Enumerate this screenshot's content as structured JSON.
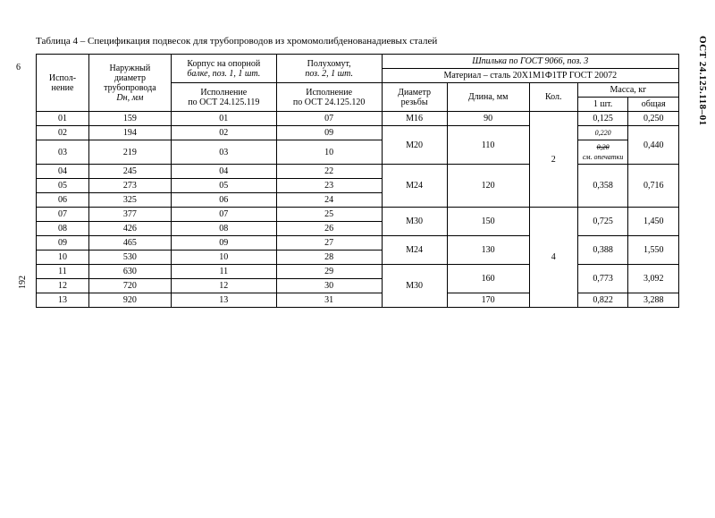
{
  "doc_code": "ОСТ 24.125.118–01",
  "side_num_top": "6",
  "side_num_192": "192",
  "caption": "Таблица 4 – Спецификация подвесок для трубопроводов из хромомолибденованадиевых сталей",
  "header": {
    "col1": "Испол-\nнение",
    "col2_a": "Наружный",
    "col2_b": "диаметр",
    "col2_c": "трубопровода",
    "col2_d": "Dн, мм",
    "col3_a": "Корпус на опорной",
    "col3_b": "балке, поз. 1, 1 шт.",
    "col3_sub": "Исполнение\nпо ОСТ 24.125.119",
    "col4_a": "Полухомут,",
    "col4_b": "поз. 2, 1 шт.",
    "col4_sub": "Исполнение\nпо ОСТ 24.125.120",
    "stud_top": "Шпилька по ГОСТ 9066, поз. 3",
    "stud_mat": "Материал – сталь 20Х1М1Ф1ТР  ГОСТ 20072",
    "thread": "Диаметр\nрезьбы",
    "length": "Длина, мм",
    "qty": "Кол.",
    "mass": "Масса, кг",
    "mass_1": "1 шт.",
    "mass_tot": "общая"
  },
  "rows": [
    {
      "n": "01",
      "d": "159",
      "c3": "01",
      "c4": "07",
      "thread": "М16",
      "len": "90",
      "qty": "",
      "m1": "0,125",
      "mt": "0,250"
    },
    {
      "n": "02",
      "d": "194",
      "c3": "02",
      "c4": "09",
      "thread": "",
      "len": "",
      "qty": "",
      "m1": "0,220",
      "mt": ""
    },
    {
      "n": "03",
      "d": "219",
      "c3": "03",
      "c4": "10",
      "thread": "",
      "len": "",
      "qty": "",
      "m1": "",
      "mt": ""
    },
    {
      "n": "04",
      "d": "245",
      "c3": "04",
      "c4": "22",
      "thread": "",
      "len": "",
      "qty": "2",
      "m1": "",
      "mt": ""
    },
    {
      "n": "05",
      "d": "273",
      "c3": "05",
      "c4": "23",
      "thread": "",
      "len": "",
      "qty": "",
      "m1": "",
      "mt": ""
    },
    {
      "n": "06",
      "d": "325",
      "c3": "06",
      "c4": "24",
      "thread": "",
      "len": "",
      "qty": "",
      "m1": "",
      "mt": ""
    },
    {
      "n": "07",
      "d": "377",
      "c3": "07",
      "c4": "25",
      "thread": "",
      "len": "",
      "qty": "",
      "m1": "",
      "mt": ""
    },
    {
      "n": "08",
      "d": "426",
      "c3": "08",
      "c4": "26",
      "thread": "",
      "len": "",
      "qty": "",
      "m1": "",
      "mt": ""
    },
    {
      "n": "09",
      "d": "465",
      "c3": "09",
      "c4": "27",
      "thread": "",
      "len": "",
      "qty": "",
      "m1": "",
      "mt": ""
    },
    {
      "n": "10",
      "d": "530",
      "c3": "10",
      "c4": "28",
      "thread": "",
      "len": "",
      "qty": "",
      "m1": "",
      "mt": ""
    },
    {
      "n": "11",
      "d": "630",
      "c3": "11",
      "c4": "29",
      "thread": "",
      "len": "",
      "qty": "4",
      "m1": "",
      "mt": ""
    },
    {
      "n": "12",
      "d": "720",
      "c3": "12",
      "c4": "30",
      "thread": "",
      "len": "",
      "qty": "",
      "m1": "",
      "mt": ""
    },
    {
      "n": "13",
      "d": "920",
      "c3": "13",
      "c4": "31",
      "thread": "",
      "len": "170",
      "qty": "",
      "m1": "0,822",
      "mt": "3,288"
    }
  ],
  "merged": {
    "thread_M20": "М20",
    "len_110": "110",
    "mt_0440": "0,440",
    "thread_M24a": "М24",
    "len_120": "120",
    "m1_0358": "0,358",
    "mt_0716": "0,716",
    "thread_M30a": "М30",
    "len_150": "150",
    "m1_0725": "0,725",
    "mt_1450": "1,450",
    "thread_M24b": "М24",
    "len_130": "130",
    "m1_0388": "0,388",
    "mt_1550": "1,550",
    "thread_M30b": "М30",
    "len_160": "160",
    "m1_0773": "0,773",
    "mt_3092": "3,092",
    "hand_strike": "0,20",
    "hand_note": "см. опечатки"
  }
}
